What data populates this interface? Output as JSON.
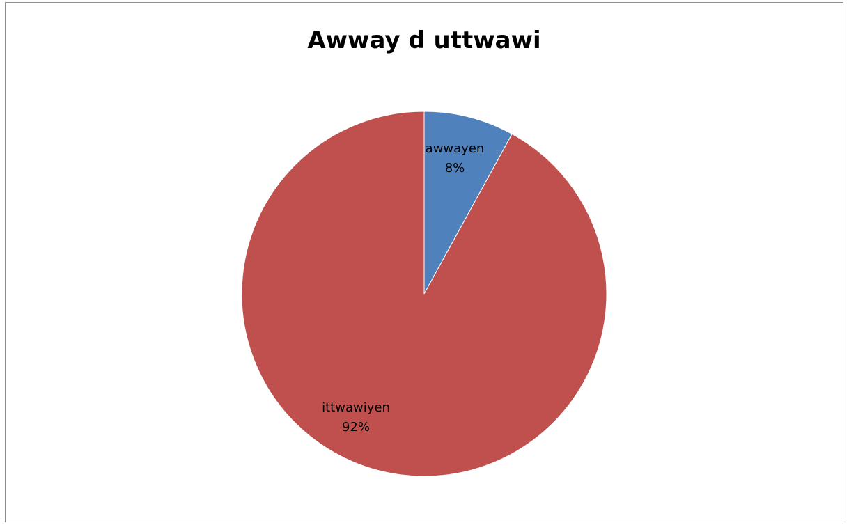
{
  "chart_data": {
    "type": "pie",
    "title": "Awway d uttwawi",
    "slices": [
      {
        "label": "awwayen",
        "value": 8,
        "value_label": "8%",
        "color": "#4f81bd"
      },
      {
        "label": "ittwawiyen",
        "value": 92,
        "value_label": "92%",
        "color": "#c0504d"
      }
    ],
    "start_angle": "12 o'clock",
    "direction": "clockwise",
    "legend": "none",
    "data_labels": "category name and percentage inside slices"
  }
}
